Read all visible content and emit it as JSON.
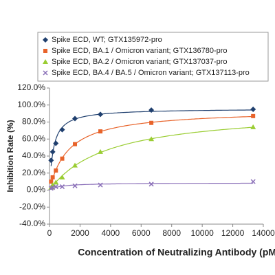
{
  "chart_data": {
    "type": "scatter",
    "x_label": "Concentration of Neutralizing Antibody (pM)",
    "y_label": "Inhibition Rate (%)",
    "x": [
      104,
      208,
      417,
      833,
      1667,
      3333,
      6667,
      13333
    ],
    "series": [
      {
        "name": "Spike ECD, WT; GTX135972-pro",
        "color": "#1f3f6e",
        "marker": "diamond",
        "values": [
          35,
          45,
          55,
          71,
          84,
          89,
          94,
          95
        ]
      },
      {
        "name": "Spike ECD, BA.1 / Omicron variant; GTX136780-pro",
        "color": "#e8632a",
        "marker": "square",
        "values": [
          10,
          15,
          23,
          37,
          54,
          69,
          79,
          87
        ]
      },
      {
        "name": "Spike ECD, BA.2 / Omicron variant; GTX137037-pro",
        "color": "#9acd32",
        "marker": "triangle",
        "values": [
          3,
          6,
          9,
          15,
          29,
          45,
          60,
          74
        ]
      },
      {
        "name": "Spike ECD, BA.4 / BA.5 / Omicron variant; GTX137113-pro",
        "color": "#8a6fb8",
        "marker": "x",
        "values": [
          2,
          3,
          4,
          4,
          5,
          6,
          7,
          10
        ]
      }
    ],
    "xlim": [
      0,
      14000
    ],
    "xticks": [
      0,
      2000,
      4000,
      6000,
      8000,
      10000,
      12000,
      14000
    ],
    "ylim": [
      -40,
      120
    ],
    "yticks": [
      {
        "value": -40,
        "label": "-40.0%"
      },
      {
        "value": -20,
        "label": "-20.0%"
      },
      {
        "value": 0,
        "label": "0.0%"
      },
      {
        "value": 20,
        "label": "20.0%"
      },
      {
        "value": 40,
        "label": "40.0%"
      },
      {
        "value": 60,
        "label": "60.0%"
      },
      {
        "value": 80,
        "label": "80.0%"
      },
      {
        "value": 100,
        "label": "100.0%"
      },
      {
        "value": 120,
        "label": "120.0%"
      }
    ],
    "legend": "top",
    "trendline": true
  }
}
